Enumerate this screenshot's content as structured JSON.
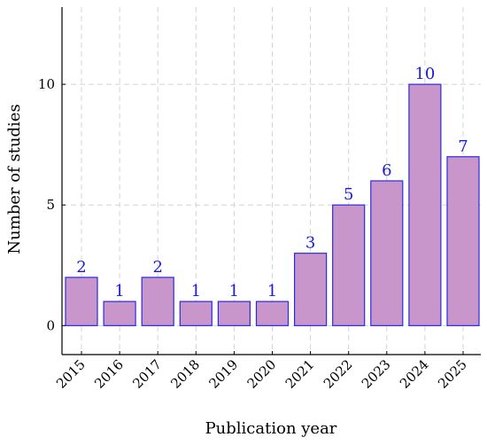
{
  "chart_data": {
    "type": "bar",
    "categories": [
      "2015",
      "2016",
      "2017",
      "2018",
      "2019",
      "2020",
      "2021",
      "2022",
      "2023",
      "2024",
      "2025"
    ],
    "values": [
      2,
      1,
      2,
      1,
      1,
      1,
      3,
      5,
      6,
      10,
      7
    ],
    "data_labels": [
      "2",
      "1",
      "2",
      "1",
      "1",
      "1",
      "3",
      "5",
      "6",
      "10",
      "7"
    ],
    "xlabel": "Publication year",
    "ylabel": "Number of studies",
    "ylim": [
      -1.2,
      13.2
    ],
    "yticks": [
      0,
      5,
      10
    ],
    "ytick_labels": [
      "0",
      "5",
      "10"
    ],
    "grid": true,
    "bar_fill": "#c896ca",
    "bar_stroke": "#2a2ae0",
    "label_color": "#1a1ad6",
    "axis_color": "#000000",
    "grid_color": "#d4d4d4"
  }
}
